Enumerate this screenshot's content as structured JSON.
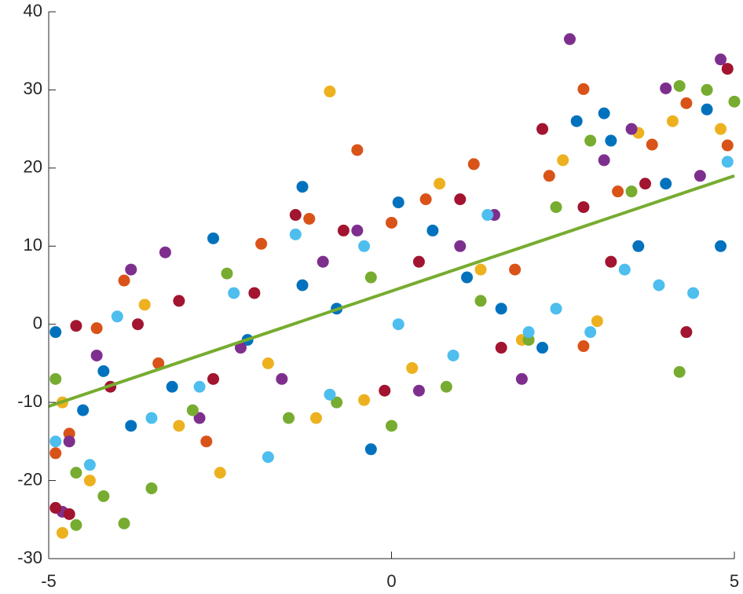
{
  "chart_data": {
    "type": "scatter",
    "xlim": [
      -5,
      5
    ],
    "ylim": [
      -30,
      40
    ],
    "xticks": [
      -5,
      0,
      5
    ],
    "yticks": [
      -30,
      -20,
      -10,
      0,
      10,
      20,
      30,
      40
    ],
    "series": [
      {
        "color": "#0072BD",
        "x": [
          -4.9,
          -4.5,
          -4.2,
          -3.8,
          -3.2,
          -2.6,
          -2.1,
          -1.3,
          -0.8,
          -0.3,
          0.1,
          0.6,
          1.1,
          1.6,
          2.2,
          2.7,
          3.1,
          3.6,
          4.0,
          4.6,
          4.8,
          -1.3,
          3.2
        ],
        "values": [
          -1,
          -11,
          -6,
          -13,
          -8,
          11,
          -2,
          17.6,
          2,
          -16,
          15.6,
          12,
          6,
          2,
          -3,
          26,
          27,
          10,
          18,
          27.5,
          10,
          5,
          23.5
        ]
      },
      {
        "color": "#D95319",
        "x": [
          -4.9,
          -4.3,
          -3.9,
          -3.4,
          -2.7,
          -1.9,
          -1.2,
          -0.5,
          0,
          0.5,
          1.2,
          1.8,
          2.3,
          2.8,
          3.3,
          3.8,
          4.3,
          4.9,
          -4.7,
          2.8
        ],
        "values": [
          -16.5,
          -0.5,
          5.6,
          -5,
          -15,
          10.3,
          13.5,
          22.3,
          13,
          16,
          20.5,
          7,
          19,
          30.1,
          17,
          23,
          28.3,
          22.9,
          -14,
          -2.8
        ]
      },
      {
        "color": "#EDB120",
        "x": [
          -4.8,
          -4.4,
          -3.6,
          -3.1,
          -2.5,
          -1.8,
          -1.1,
          -0.9,
          -0.4,
          0.3,
          0.7,
          1.3,
          1.9,
          2.5,
          3.0,
          3.6,
          4.1,
          4.8,
          -4.8
        ],
        "values": [
          -10,
          -20,
          2.5,
          -13,
          -19,
          -5,
          -12,
          29.8,
          -9.7,
          -5.6,
          18,
          7,
          -2,
          21,
          0.4,
          24.5,
          26,
          25,
          -26.7
        ]
      },
      {
        "color": "#7E2F8E",
        "x": [
          -4.7,
          -4.3,
          -3.8,
          -3.3,
          -2.8,
          -2.2,
          -1.6,
          -1,
          -0.5,
          0.4,
          1,
          1.5,
          1.9,
          2.6,
          3.1,
          3.5,
          4.0,
          4.5,
          4.8,
          -4.8
        ],
        "values": [
          -15,
          -4,
          7,
          9.2,
          -12,
          -3,
          -7,
          8,
          12,
          -8.5,
          10,
          14,
          -7,
          36.5,
          21,
          25,
          30.2,
          19,
          33.9,
          -24
        ]
      },
      {
        "color": "#77AC30",
        "x": [
          -4.9,
          -4.6,
          -4.2,
          -3.9,
          -3.5,
          -2.9,
          -2.4,
          -1.5,
          -0.8,
          -0.3,
          0,
          0.8,
          1.3,
          2.0,
          2.4,
          2.9,
          3.5,
          4.2,
          4.6,
          5.0,
          -4.6,
          4.2
        ],
        "values": [
          -7,
          -19,
          -22,
          -25.5,
          -21,
          -11,
          6.5,
          -12,
          -10,
          6,
          -13,
          -8,
          3,
          -2,
          15,
          23.5,
          17,
          30.5,
          30,
          28.5,
          -25.7,
          -6.1
        ]
      },
      {
        "color": "#4DBEEE",
        "x": [
          -4.9,
          -4.4,
          -4.0,
          -3.5,
          -2.8,
          -2.3,
          -1.8,
          -1.4,
          -0.9,
          -0.4,
          0.1,
          0.9,
          1.4,
          2.0,
          2.4,
          2.9,
          3.4,
          3.9,
          4.4,
          4.9
        ],
        "values": [
          -15,
          -18,
          1,
          -12,
          -8,
          4,
          -17,
          11.5,
          -9,
          10,
          0,
          -4,
          14,
          -1,
          2,
          -1,
          7,
          5,
          4,
          20.8
        ]
      },
      {
        "color": "#A2142F",
        "x": [
          -4.9,
          -4.6,
          -4.1,
          -3.7,
          -3.1,
          -2.6,
          -2,
          -1.4,
          -0.7,
          -0.1,
          0.4,
          1.0,
          1.6,
          2.2,
          2.8,
          3.2,
          3.7,
          4.3,
          4.9,
          -4.7
        ],
        "values": [
          -23.5,
          -0.2,
          -8,
          0,
          3,
          -7,
          4,
          14,
          12,
          -8.5,
          8,
          16,
          -3,
          25,
          15,
          8,
          18,
          -1,
          32.7,
          -24.3
        ]
      }
    ],
    "fit": {
      "color": "#77AC30",
      "x": [
        -5,
        5
      ],
      "values": [
        -10.5,
        19
      ]
    }
  }
}
